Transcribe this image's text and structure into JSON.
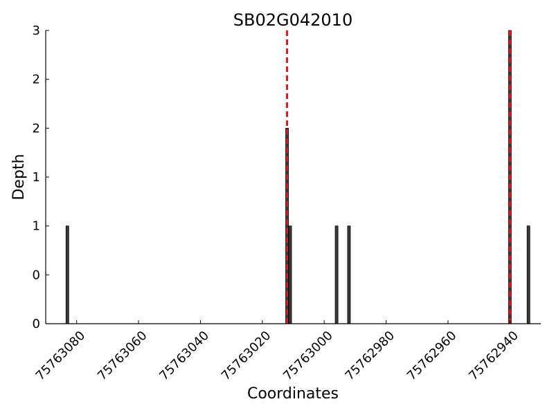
{
  "chart_data": {
    "type": "bar",
    "title": "SB02G042010",
    "xlabel": "Coordinates",
    "ylabel": "Depth",
    "x_axis_reversed": true,
    "xlim": [
      75763090,
      75762930
    ],
    "ylim": [
      0,
      3
    ],
    "x_ticks": [
      75763080,
      75763060,
      75763040,
      75763020,
      75763000,
      75762980,
      75762960,
      75762940
    ],
    "y_ticks": [
      0,
      0.5,
      1,
      1.5,
      2,
      2.5,
      3
    ],
    "y_tick_labels": [
      "0",
      "0",
      "1",
      "1",
      "2",
      "2",
      "3"
    ],
    "bars": [
      {
        "x": 75763083,
        "value": 1
      },
      {
        "x": 75763012,
        "value": 2
      },
      {
        "x": 75763011,
        "value": 1
      },
      {
        "x": 75762996,
        "value": 1
      },
      {
        "x": 75762992,
        "value": 1
      },
      {
        "x": 75762940,
        "value": 3
      },
      {
        "x": 75762934,
        "value": 1
      }
    ],
    "vlines": [
      75763012,
      75762940
    ],
    "colors": {
      "bar_fill": "#3b3b3b",
      "bar_edge": "#000000",
      "vline": "#e8141e"
    },
    "grid": false
  }
}
